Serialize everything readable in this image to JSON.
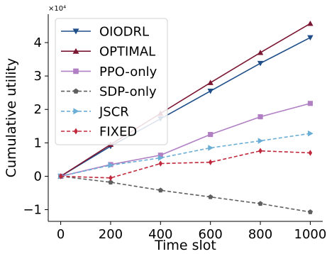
{
  "chart_data": {
    "type": "line",
    "xlabel": "Time slot",
    "ylabel": "Cumulative utility",
    "y_multiplier_label": "×10⁴",
    "x": [
      0,
      200,
      400,
      600,
      800,
      1000
    ],
    "xlim": [
      -50,
      1050
    ],
    "ylim": [
      -1.35,
      4.85
    ],
    "x_ticks": [
      0,
      200,
      400,
      600,
      800,
      1000
    ],
    "y_ticks": [
      -1,
      0,
      1,
      2,
      3,
      4
    ],
    "y_tick_labels": [
      "−1",
      "0",
      "1",
      "2",
      "3",
      "4"
    ],
    "grid": false,
    "legend_position": "top-left",
    "series": [
      {
        "name": "OIODRL",
        "values": [
          0,
          0.9,
          1.72,
          2.55,
          3.38,
          4.15
        ],
        "color": "#1f4e89",
        "dash": "solid",
        "marker": "triangle-down"
      },
      {
        "name": "OPTIMAL",
        "values": [
          0,
          0.95,
          1.88,
          2.8,
          3.7,
          4.57
        ],
        "color": "#7b1733",
        "dash": "solid",
        "marker": "triangle-up"
      },
      {
        "name": "PPO-only",
        "values": [
          0,
          0.35,
          0.63,
          1.25,
          1.78,
          2.18
        ],
        "color": "#b07fc4",
        "dash": "solid",
        "marker": "square"
      },
      {
        "name": "SDP-only",
        "values": [
          0,
          -0.18,
          -0.42,
          -0.62,
          -0.82,
          -1.07
        ],
        "color": "#5f5f5f",
        "dash": "dashed",
        "marker": "pentagon"
      },
      {
        "name": "JSCR",
        "values": [
          0,
          0.33,
          0.55,
          0.85,
          1.06,
          1.28
        ],
        "color": "#6aaed6",
        "dash": "dashed",
        "marker": "triangle-right"
      },
      {
        "name": "FIXED",
        "values": [
          0,
          -0.05,
          0.38,
          0.42,
          0.76,
          0.7
        ],
        "color": "#c0283c",
        "dash": "dashed",
        "marker": "diamond"
      }
    ]
  }
}
